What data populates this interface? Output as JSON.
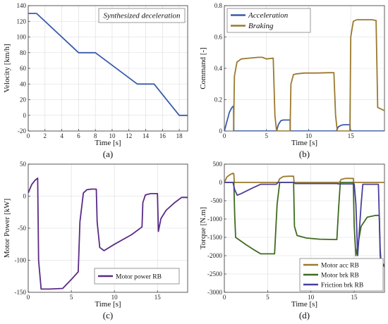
{
  "chart_data": [
    {
      "type": "line",
      "panel": "(a)",
      "xlabel": "Time [s]",
      "ylabel": "Velocity [km/h]",
      "xlim": [
        0,
        19
      ],
      "ylim": [
        -20,
        140
      ],
      "xticks": [
        0,
        2,
        4,
        6,
        8,
        10,
        12,
        14,
        16,
        18
      ],
      "yticks": [
        -20,
        0,
        20,
        40,
        60,
        80,
        100,
        120,
        140
      ],
      "grid": true,
      "legend": "top-right",
      "series": [
        {
          "name": "Synthesized deceleration",
          "color": "#3a5bab",
          "x": [
            0,
            1,
            6,
            8,
            13,
            15,
            18,
            19
          ],
          "y": [
            130,
            130,
            80,
            80,
            40,
            40,
            0,
            0
          ]
        }
      ]
    },
    {
      "type": "line",
      "panel": "(b)",
      "xlabel": "Time [s]",
      "ylabel": "Command [-]",
      "xlim": [
        0,
        19
      ],
      "ylim": [
        0,
        0.8
      ],
      "xticks": [
        0,
        5,
        10,
        15
      ],
      "yticks": [
        0,
        0.2,
        0.4,
        0.6,
        0.8
      ],
      "grid": true,
      "legend": "top-left",
      "series": [
        {
          "name": "Acceleration",
          "color": "#3a5bab",
          "x": [
            0,
            0.3,
            0.6,
            0.9,
            1.1,
            1.12,
            6.2,
            6.4,
            6.7,
            7.0,
            7.8,
            7.82,
            13.3,
            13.5,
            13.8,
            14.1,
            14.9,
            14.92,
            19
          ],
          "y": [
            0,
            0.06,
            0.12,
            0.15,
            0.16,
            0,
            0,
            0.04,
            0.065,
            0.07,
            0.07,
            0,
            0,
            0.025,
            0.035,
            0.04,
            0.04,
            0,
            0
          ]
        },
        {
          "name": "Braking",
          "color": "#9a7a2e",
          "x": [
            1.1,
            1.2,
            1.5,
            2.0,
            3.0,
            4.0,
            4.5,
            5.0,
            5.8,
            6.0,
            6.2,
            7.8,
            7.9,
            8.2,
            8.6,
            9.5,
            11.0,
            12.5,
            13.0,
            13.2,
            13.4,
            14.9,
            15.0,
            15.3,
            15.7,
            16.5,
            17.5,
            18.0,
            18.2,
            19
          ],
          "y": [
            0,
            0.35,
            0.44,
            0.46,
            0.465,
            0.47,
            0.47,
            0.46,
            0.465,
            0.1,
            0,
            0,
            0.3,
            0.36,
            0.365,
            0.37,
            0.37,
            0.372,
            0.372,
            0.1,
            0,
            0,
            0.6,
            0.7,
            0.71,
            0.71,
            0.71,
            0.705,
            0.15,
            0.13
          ]
        }
      ]
    },
    {
      "type": "line",
      "panel": "(c)",
      "xlabel": "Time [s]",
      "ylabel": "Motor Power [kW]",
      "xlim": [
        0,
        18.5
      ],
      "ylim": [
        -150,
        50
      ],
      "xticks": [
        0,
        5,
        10,
        15
      ],
      "yticks": [
        -150,
        -100,
        -50,
        0,
        50
      ],
      "grid": true,
      "legend": "bottom-right",
      "series": [
        {
          "name": "Motor power RB",
          "color": "#5b2a86",
          "x": [
            0,
            0.4,
            0.8,
            1.1,
            1.2,
            1.5,
            2.5,
            4.0,
            5.0,
            5.8,
            6.0,
            6.4,
            6.8,
            7.3,
            7.9,
            8.0,
            8.3,
            8.8,
            10,
            12,
            13.2,
            13.3,
            13.6,
            14.2,
            15.0,
            15.1,
            15.4,
            16,
            17,
            17.8,
            18.5
          ],
          "y": [
            5,
            18,
            25,
            28,
            -100,
            -145,
            -145,
            -144,
            -130,
            -118,
            -40,
            5,
            10,
            11,
            11,
            -40,
            -80,
            -85,
            -75,
            -60,
            -48,
            -10,
            2,
            4,
            4,
            -55,
            -35,
            -22,
            -10,
            -2,
            -2
          ]
        }
      ]
    },
    {
      "type": "line",
      "panel": "(d)",
      "xlabel": "Time [s]",
      "ylabel": "Torque [N.m]",
      "xlim": [
        0,
        18.5
      ],
      "ylim": [
        -3000,
        500
      ],
      "xticks": [
        0,
        5,
        10,
        15
      ],
      "yticks": [
        -3000,
        -2500,
        -2000,
        -1500,
        -1000,
        -500,
        0,
        500
      ],
      "grid": true,
      "legend": "bottom-right",
      "series": [
        {
          "name": "Motor acc RB",
          "color": "#9a7a2e",
          "x": [
            0,
            0.3,
            0.7,
            1.0,
            1.1,
            1.15,
            6.2,
            6.4,
            6.8,
            7.5,
            8.0,
            8.05,
            13.3,
            13.5,
            14.0,
            14.9,
            14.95,
            18.5
          ],
          "y": [
            0,
            150,
            220,
            250,
            230,
            0,
            0,
            100,
            160,
            170,
            170,
            0,
            0,
            80,
            110,
            110,
            0,
            0
          ]
        },
        {
          "name": "Motor brk RB",
          "color": "#3f6b1f",
          "x": [
            0,
            1.1,
            1.2,
            1.3,
            2.5,
            3.5,
            4.2,
            5.0,
            5.8,
            6.1,
            6.4,
            8.0,
            8.1,
            8.4,
            9.5,
            11,
            13.0,
            13.2,
            13.4,
            14.9,
            15.0,
            15.2,
            15.8,
            16.5,
            17.5,
            17.9,
            18.0,
            18.1,
            18.5
          ],
          "y": [
            0,
            0,
            -900,
            -1500,
            -1700,
            -1850,
            -1950,
            -1950,
            -1950,
            -600,
            0,
            0,
            -1200,
            -1450,
            -1520,
            -1550,
            -1560,
            -700,
            0,
            0,
            -1200,
            -2000,
            -1200,
            -950,
            -900,
            -900,
            -2000,
            -2200,
            -2250
          ]
        },
        {
          "name": "Friction brk RB",
          "color": "#4a3f9c",
          "x": [
            0,
            1.0,
            1.2,
            1.5,
            2.0,
            3.0,
            4.2,
            6.0,
            6.2,
            8.0,
            8.2,
            13.0,
            13.2,
            15.0,
            15.2,
            15.4,
            15.8,
            16,
            17.8,
            18.0,
            18.1,
            18.5
          ],
          "y": [
            0,
            0,
            -200,
            -350,
            -300,
            -180,
            -50,
            -50,
            0,
            0,
            -30,
            -30,
            -40,
            -40,
            -600,
            -2000,
            -600,
            -50,
            -50,
            -1800,
            -2200,
            -2300
          ]
        }
      ]
    }
  ],
  "annotations": {
    "a": "(a)",
    "b": "(b)",
    "c": "(c)",
    "d": "(d)"
  }
}
